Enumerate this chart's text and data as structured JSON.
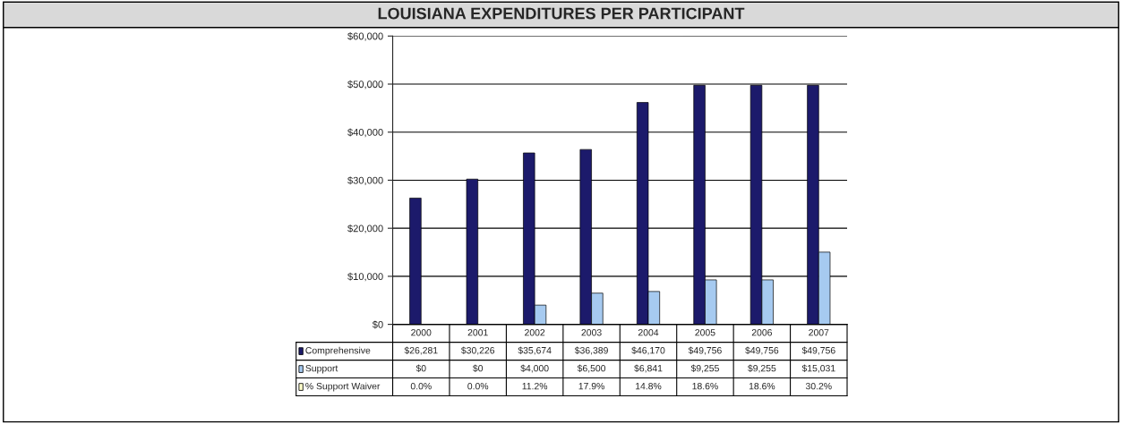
{
  "chart_data": {
    "type": "bar",
    "title": "LOUISIANA EXPENDITURES PER PARTICIPANT",
    "categories": [
      "2000",
      "2001",
      "2002",
      "2003",
      "2004",
      "2005",
      "2006",
      "2007"
    ],
    "series": [
      {
        "name": "Comprehensive",
        "color": "#1c1a6b",
        "values": [
          26281,
          30226,
          35674,
          36389,
          46170,
          49756,
          49756,
          49756
        ],
        "value_labels": [
          "$26,281",
          "$30,226",
          "$35,674",
          "$36,389",
          "$46,170",
          "$49,756",
          "$49,756",
          "$49,756"
        ]
      },
      {
        "name": "Support",
        "color": "#a6caf0",
        "values": [
          0,
          0,
          4000,
          6500,
          6841,
          9255,
          9255,
          15031
        ],
        "value_labels": [
          "$0",
          "$0",
          "$4,000",
          "$6,500",
          "$6,841",
          "$9,255",
          "$9,255",
          "$15,031"
        ]
      },
      {
        "name": "% Support Waiver",
        "color": "#ffffcc",
        "values": [
          null,
          null,
          null,
          null,
          null,
          null,
          null,
          null
        ],
        "value_labels": [
          "0.0%",
          "0.0%",
          "11.2%",
          "17.9%",
          "14.8%",
          "18.6%",
          "18.6%",
          "30.2%"
        ]
      }
    ],
    "ylim": [
      0,
      60000
    ],
    "yticks": [
      {
        "value": 0,
        "label": "$0"
      },
      {
        "value": 10000,
        "label": "$10,000"
      },
      {
        "value": 20000,
        "label": "$20,000"
      },
      {
        "value": 30000,
        "label": "$30,000"
      },
      {
        "value": 40000,
        "label": "$40,000"
      },
      {
        "value": 50000,
        "label": "$50,000"
      },
      {
        "value": 60000,
        "label": "$60,000"
      }
    ],
    "grid": "y",
    "legend": "bottom"
  }
}
